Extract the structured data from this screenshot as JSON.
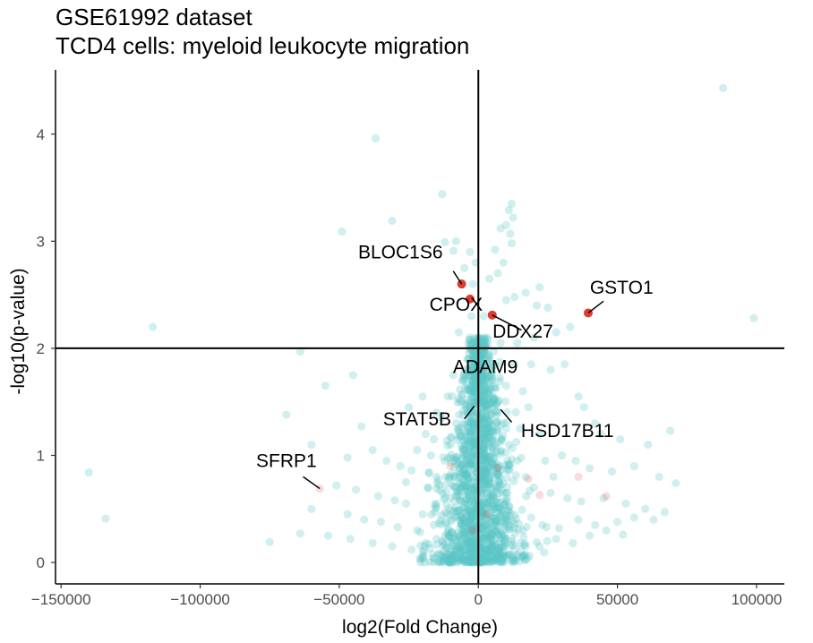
{
  "chart_data": {
    "type": "scatter",
    "title": "GSE61992 dataset",
    "subtitle": "TCD4 cells: myeloid leukocyte migration",
    "xlabel": "log2(Fold Change)",
    "ylabel": "-log10(p-value)",
    "xlim": [
      -152000,
      110000
    ],
    "ylim": [
      -0.2,
      4.6
    ],
    "x_ticks": [
      -150000,
      -100000,
      -50000,
      0,
      50000,
      100000
    ],
    "x_tick_labels": [
      "−150000",
      "−100000",
      "−50000",
      "0",
      "50000",
      "100000"
    ],
    "y_ticks": [
      0,
      1,
      2,
      3,
      4
    ],
    "y_tick_labels": [
      "0",
      "1",
      "2",
      "3",
      "4"
    ],
    "hline": 2,
    "vline": 0,
    "grid": false,
    "colors": {
      "background_points": "#5bc4c6",
      "highlight_points": "#e03b2c",
      "axis": "#000000"
    },
    "background_points": [
      [
        88000,
        4.43
      ],
      [
        -37000,
        3.96
      ],
      [
        -13000,
        3.44
      ],
      [
        12000,
        3.35
      ],
      [
        11000,
        3.29
      ],
      [
        -31000,
        3.19
      ],
      [
        12500,
        3.22
      ],
      [
        10000,
        3.15
      ],
      [
        8000,
        3.12
      ],
      [
        11500,
        3.07
      ],
      [
        -49000,
        3.09
      ],
      [
        -12000,
        2.99
      ],
      [
        -8000,
        3.0
      ],
      [
        12000,
        2.98
      ],
      [
        -9000,
        2.91
      ],
      [
        -3000,
        2.9
      ],
      [
        6000,
        2.92
      ],
      [
        -1000,
        2.8
      ],
      [
        9000,
        2.8
      ],
      [
        -5000,
        2.75
      ],
      [
        7000,
        2.7
      ],
      [
        4000,
        2.65
      ],
      [
        -2000,
        2.6
      ],
      [
        22000,
        2.57
      ],
      [
        17000,
        2.52
      ],
      [
        13000,
        2.48
      ],
      [
        10000,
        2.45
      ],
      [
        21000,
        2.4
      ],
      [
        25000,
        2.38
      ],
      [
        -117000,
        2.2
      ],
      [
        99000,
        2.28
      ],
      [
        33000,
        2.2
      ],
      [
        28000,
        2.15
      ],
      [
        20000,
        2.1
      ],
      [
        14000,
        2.05
      ],
      [
        -3000,
        2.0
      ],
      [
        -64000,
        1.97
      ],
      [
        31000,
        1.85
      ],
      [
        26000,
        1.8
      ],
      [
        -45000,
        1.75
      ],
      [
        -55000,
        1.65
      ],
      [
        -20000,
        1.55
      ],
      [
        -25000,
        1.45
      ],
      [
        -15000,
        1.4
      ],
      [
        -69000,
        1.38
      ],
      [
        36000,
        1.55
      ],
      [
        38000,
        1.45
      ],
      [
        42000,
        1.3
      ],
      [
        -42000,
        1.27
      ],
      [
        44000,
        1.2
      ],
      [
        51000,
        1.15
      ],
      [
        61000,
        1.1
      ],
      [
        69000,
        1.23
      ],
      [
        -60000,
        1.1
      ],
      [
        -38000,
        1.05
      ],
      [
        -47000,
        0.98
      ],
      [
        -33000,
        0.95
      ],
      [
        -28000,
        0.9
      ],
      [
        -24000,
        0.86
      ],
      [
        30000,
        1.0
      ],
      [
        35000,
        0.95
      ],
      [
        40000,
        0.88
      ],
      [
        48000,
        0.85
      ],
      [
        56000,
        0.9
      ],
      [
        65000,
        0.8
      ],
      [
        -140000,
        0.84
      ],
      [
        71000,
        0.74
      ],
      [
        -51000,
        0.72
      ],
      [
        -44000,
        0.68
      ],
      [
        -36000,
        0.62
      ],
      [
        -30000,
        0.58
      ],
      [
        -26000,
        0.55
      ],
      [
        26000,
        0.65
      ],
      [
        32000,
        0.6
      ],
      [
        37000,
        0.57
      ],
      [
        45000,
        0.6
      ],
      [
        53000,
        0.55
      ],
      [
        60000,
        0.5
      ],
      [
        67000,
        0.47
      ],
      [
        -60000,
        0.5
      ],
      [
        -47000,
        0.45
      ],
      [
        -41000,
        0.4
      ],
      [
        -35000,
        0.38
      ],
      [
        -29000,
        0.33
      ],
      [
        -22000,
        0.3
      ],
      [
        23000,
        0.35
      ],
      [
        29000,
        0.32
      ],
      [
        36000,
        0.4
      ],
      [
        42000,
        0.35
      ],
      [
        50000,
        0.38
      ],
      [
        56000,
        0.42
      ],
      [
        63000,
        0.4
      ],
      [
        -134000,
        0.41
      ],
      [
        -75000,
        0.19
      ],
      [
        -64000,
        0.27
      ],
      [
        -54000,
        0.25
      ],
      [
        -46000,
        0.22
      ],
      [
        -38000,
        0.18
      ],
      [
        -31000,
        0.15
      ],
      [
        -24000,
        0.12
      ],
      [
        22000,
        0.15
      ],
      [
        28000,
        0.22
      ],
      [
        34000,
        0.18
      ],
      [
        40000,
        0.25
      ],
      [
        46000,
        0.3
      ],
      [
        52000,
        0.26
      ],
      [
        -18000,
        0.7
      ],
      [
        -15000,
        0.8
      ],
      [
        -12000,
        0.95
      ],
      [
        -10000,
        1.1
      ],
      [
        -8000,
        1.3
      ],
      [
        -6000,
        1.5
      ],
      [
        -5000,
        1.7
      ],
      [
        -4000,
        1.9
      ],
      [
        -3000,
        2.1
      ],
      [
        -2500,
        2.3
      ],
      [
        2000,
        2.3
      ],
      [
        3000,
        2.1
      ],
      [
        4000,
        1.9
      ],
      [
        5000,
        1.7
      ],
      [
        7000,
        1.5
      ],
      [
        9000,
        1.3
      ],
      [
        11000,
        1.1
      ],
      [
        14000,
        0.95
      ],
      [
        17000,
        0.8
      ],
      [
        20000,
        0.7
      ],
      [
        -20000,
        0.45
      ],
      [
        -16000,
        0.35
      ],
      [
        -12000,
        0.25
      ],
      [
        -8000,
        0.15
      ],
      [
        -4000,
        0.08
      ],
      [
        4000,
        0.08
      ],
      [
        8000,
        0.14
      ],
      [
        12000,
        0.22
      ],
      [
        16000,
        0.3
      ],
      [
        19000,
        0.42
      ],
      [
        -17000,
        1.0
      ],
      [
        15000,
        1.25
      ],
      [
        18000,
        1.45
      ],
      [
        22000,
        1.2
      ],
      [
        -19000,
        1.2
      ],
      [
        -22000,
        1.05
      ],
      [
        24000,
        0.95
      ],
      [
        -26000,
        0.75
      ],
      [
        27000,
        0.8
      ],
      [
        -9000,
        1.75
      ],
      [
        10000,
        1.65
      ],
      [
        -7000,
        2.15
      ],
      [
        8000,
        2.05
      ],
      [
        13000,
        1.85
      ],
      [
        -11000,
        1.55
      ],
      [
        -13000,
        1.35
      ],
      [
        16000,
        1.6
      ],
      [
        19000,
        1.85
      ],
      [
        -16000,
        1.15
      ]
    ],
    "cluster": {
      "x_sd": 8500,
      "count": 1600
    },
    "faint_highlight_points": [
      [
        -57000,
        0.69
      ],
      [
        -10000,
        0.9
      ],
      [
        7000,
        0.88
      ],
      [
        18000,
        0.78
      ],
      [
        22000,
        0.63
      ],
      [
        36000,
        0.8
      ],
      [
        46000,
        0.62
      ],
      [
        -2000,
        0.3
      ],
      [
        3000,
        0.45
      ]
    ],
    "labeled_points": [
      {
        "gene": "BLOC1S6",
        "x": -6000,
        "y": 2.6
      },
      {
        "gene": "CPOX",
        "x": -3000,
        "y": 2.46
      },
      {
        "gene": "DDX27",
        "x": 5000,
        "y": 2.31
      },
      {
        "gene": "GSTO1",
        "x": 39500,
        "y": 2.33
      },
      {
        "gene": "ADAM9",
        "x": 1000,
        "y": 2.0
      },
      {
        "gene": "STAT5B",
        "x": -1000,
        "y": 1.52
      },
      {
        "gene": "HSD17B11",
        "x": 7000,
        "y": 1.45
      },
      {
        "gene": "SFRP1",
        "x": -57000,
        "y": 0.69
      }
    ],
    "annotations": [
      {
        "gene": "BLOC1S6",
        "label_x": -28000,
        "label_y": 2.84,
        "line": [
          [
            -9000,
            2.72
          ],
          [
            -6000,
            2.6
          ]
        ]
      },
      {
        "gene": "CPOX",
        "label_x": -8000,
        "label_y": 2.35,
        "line": null
      },
      {
        "gene": "DDX27",
        "label_x": 16000,
        "label_y": 2.1,
        "line": [
          [
            15500,
            2.17
          ],
          [
            5000,
            2.31
          ]
        ]
      },
      {
        "gene": "GSTO1",
        "label_x": 51500,
        "label_y": 2.51,
        "line": [
          [
            45000,
            2.44
          ],
          [
            39500,
            2.33
          ]
        ]
      },
      {
        "gene": "ADAM9",
        "label_x": 2500,
        "label_y": 1.77,
        "line": null
      },
      {
        "gene": "STAT5B",
        "label_x": -22000,
        "label_y": 1.28,
        "line": [
          [
            -1500,
            1.46
          ],
          [
            -5000,
            1.34
          ]
        ]
      },
      {
        "gene": "HSD17B11",
        "label_x": 32000,
        "label_y": 1.17,
        "line": [
          [
            12000,
            1.31
          ],
          [
            8000,
            1.43
          ]
        ]
      },
      {
        "gene": "SFRP1",
        "label_x": -69000,
        "label_y": 0.89,
        "line": [
          [
            -63000,
            0.8
          ],
          [
            -57000,
            0.69
          ]
        ]
      }
    ]
  }
}
